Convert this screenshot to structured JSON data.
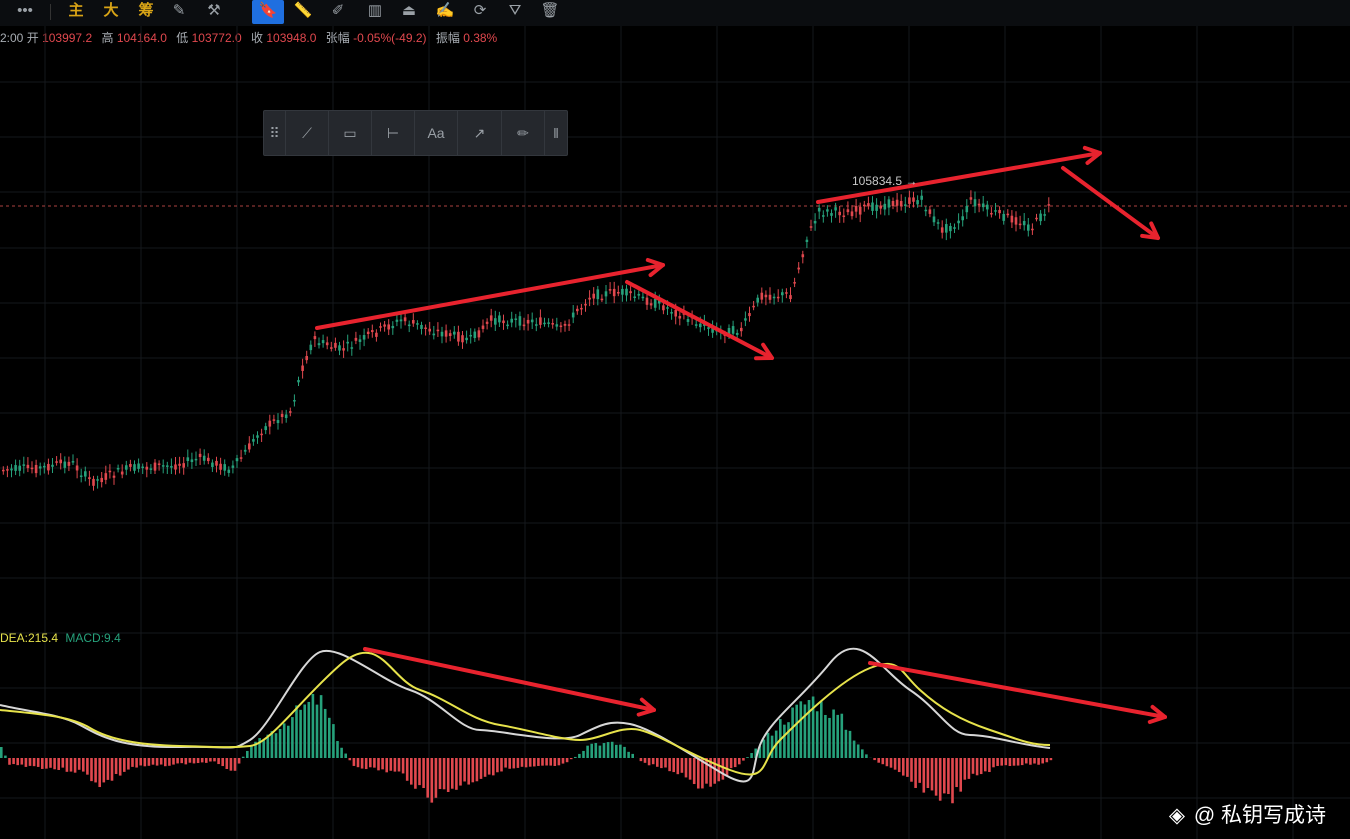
{
  "toolbar": {
    "items": [
      {
        "label": "•••",
        "name": "more-menu-button"
      },
      {
        "label": "主",
        "name": "main-indicator-button"
      },
      {
        "label": "大",
        "name": "big-order-button"
      },
      {
        "label": "筹",
        "name": "chip-distribution-button"
      },
      {
        "label": "✎",
        "name": "edit-drawing-button"
      },
      {
        "label": "⚒",
        "name": "drawing-tools-button"
      },
      {
        "label": "🔖",
        "name": "bookmark-tool-button"
      },
      {
        "label": "📏",
        "name": "ruler-tool-button"
      },
      {
        "label": "✐",
        "name": "pen-tool-button"
      },
      {
        "label": "▥",
        "name": "candlestick-style-button"
      },
      {
        "label": "⏏",
        "name": "lock-button"
      },
      {
        "label": "✍",
        "name": "note-button"
      },
      {
        "label": "⟳",
        "name": "magnet-button"
      },
      {
        "label": "⛛",
        "name": "filter-button"
      },
      {
        "label": "🗑",
        "name": "delete-button"
      }
    ]
  },
  "ohlc": {
    "time": "2:00",
    "open_label": "开",
    "open": "103997.2",
    "high_label": "高",
    "high": "104164.0",
    "low_label": "低",
    "low": "103772.0",
    "close_label": "收",
    "close": "103948.0",
    "change_label": "张幅",
    "change": "-0.05%(-49.2)",
    "amplitude_label": "振幅",
    "amplitude": "0.38%"
  },
  "drawing_toolbar": {
    "tools": [
      {
        "label": "⠿",
        "name": "drag-handle-icon"
      },
      {
        "label": "⟋",
        "name": "trend-line-tool"
      },
      {
        "label": "▭",
        "name": "range-tool"
      },
      {
        "label": "⊢",
        "name": "horizontal-line-tool"
      },
      {
        "label": "Aa",
        "name": "text-tool"
      },
      {
        "label": "↗",
        "name": "arrow-tool"
      },
      {
        "label": "✏",
        "name": "ruler-tool"
      },
      {
        "label": "‖",
        "name": "collapse-handle"
      }
    ]
  },
  "price_label": "105834.5 →",
  "macd_legend": {
    "dea_label": "DEA:215.4",
    "macd_label": "MACD:9.4"
  },
  "watermark": {
    "icon": "binance-logo-icon",
    "text": "@ 私钥写成诗"
  },
  "colors": {
    "background": "#000000",
    "up": "#26a17b",
    "down": "#e0484e",
    "arrow": "#e8232e",
    "dif": "#d7d7d7",
    "dea": "#e7e34b",
    "grid": "#15181c",
    "current_price_line": "#d9534f"
  }
}
